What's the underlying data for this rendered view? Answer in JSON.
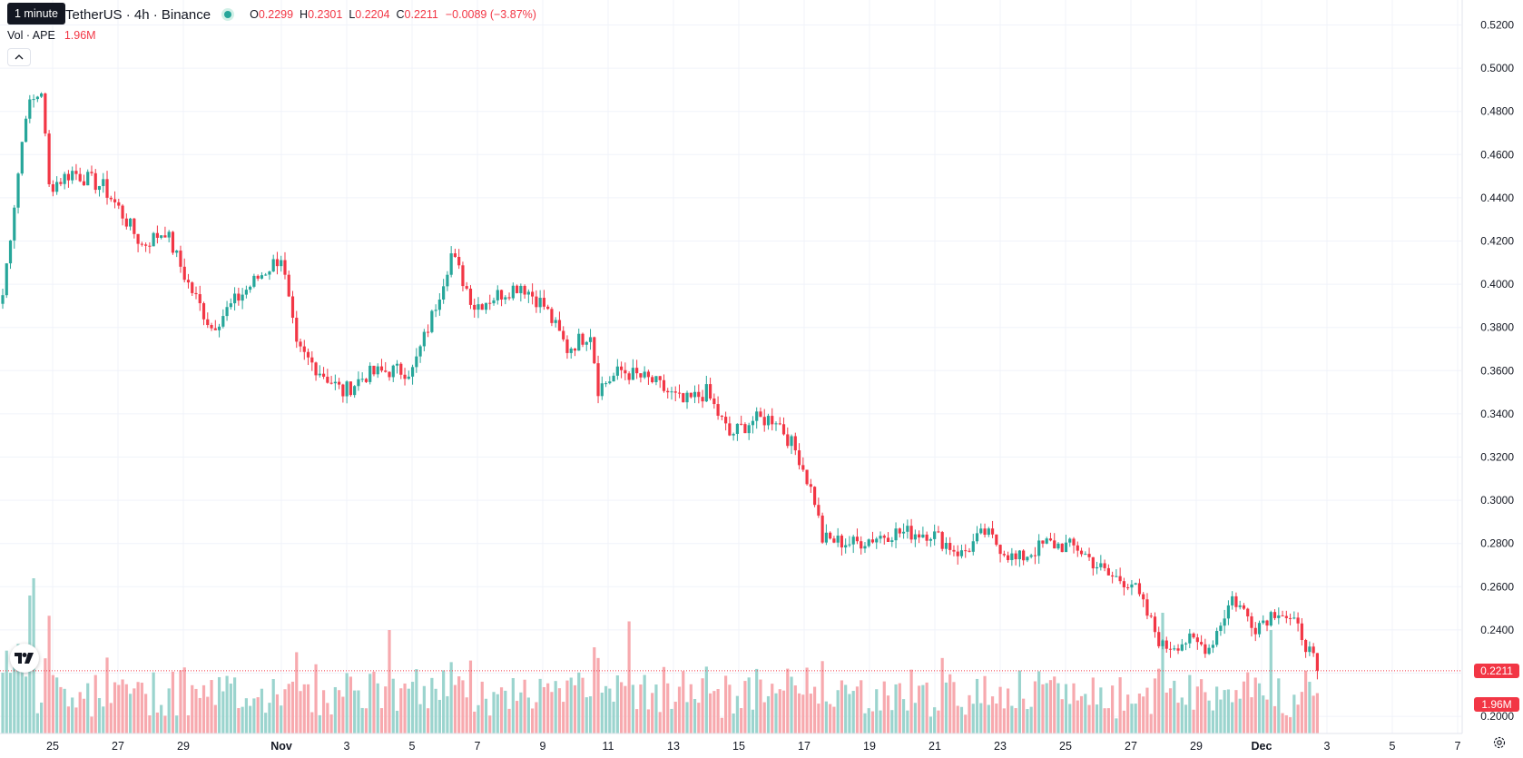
{
  "legend": {
    "symbol": "TetherUS · 4h · Binance",
    "open_label": "O",
    "open": "0.2299",
    "high_label": "H",
    "high": "0.2301",
    "low_label": "L",
    "low": "0.2204",
    "close_label": "C",
    "close": "0.2211",
    "change": "−0.0089 (−3.87%)"
  },
  "tooltip": "1 minute",
  "volume": {
    "label": "Vol · APE",
    "value": "1.96M"
  },
  "price_tag": "0.2211",
  "volume_tag": "1.96M",
  "colors": {
    "up": "#26a69a",
    "down": "#f23645",
    "up_volume": "#9bd4ce",
    "down_volume": "#f7a9ae",
    "grid": "#f0f3fa"
  },
  "icons": {
    "collapse": "chevron-up-icon",
    "logo": "tradingview-logo-icon",
    "settings": "gear-icon"
  },
  "chart_data": {
    "type": "candlestick",
    "timeframe": "4h",
    "x_ticks": [
      "25",
      "27",
      "29",
      "Nov",
      "3",
      "5",
      "7",
      "9",
      "11",
      "13",
      "15",
      "17",
      "19",
      "21",
      "23",
      "25",
      "27",
      "29",
      "Dec",
      "3",
      "5",
      "7"
    ],
    "y_ticks": [
      "0.5200",
      "0.5000",
      "0.4800",
      "0.4600",
      "0.4400",
      "0.4200",
      "0.4000",
      "0.3800",
      "0.3600",
      "0.3400",
      "0.3200",
      "0.3000",
      "0.2800",
      "0.2600",
      "0.2400",
      "0.2200",
      "0.2000"
    ],
    "ylim": [
      0.2,
      0.52
    ],
    "last_price": 0.2211,
    "anchors": [
      {
        "i": 0,
        "c": 0.395
      },
      {
        "i": 6,
        "c": 0.48
      },
      {
        "i": 10,
        "c": 0.49
      },
      {
        "i": 12,
        "c": 0.445
      },
      {
        "i": 18,
        "c": 0.452
      },
      {
        "i": 26,
        "c": 0.445
      },
      {
        "i": 30,
        "c": 0.435
      },
      {
        "i": 36,
        "c": 0.418
      },
      {
        "i": 42,
        "c": 0.425
      },
      {
        "i": 48,
        "c": 0.4
      },
      {
        "i": 54,
        "c": 0.38
      },
      {
        "i": 60,
        "c": 0.392
      },
      {
        "i": 66,
        "c": 0.403
      },
      {
        "i": 72,
        "c": 0.413
      },
      {
        "i": 76,
        "c": 0.37
      },
      {
        "i": 82,
        "c": 0.36
      },
      {
        "i": 88,
        "c": 0.35
      },
      {
        "i": 94,
        "c": 0.358
      },
      {
        "i": 100,
        "c": 0.36
      },
      {
        "i": 106,
        "c": 0.36
      },
      {
        "i": 111,
        "c": 0.385
      },
      {
        "i": 116,
        "c": 0.414
      },
      {
        "i": 122,
        "c": 0.39
      },
      {
        "i": 128,
        "c": 0.395
      },
      {
        "i": 134,
        "c": 0.4
      },
      {
        "i": 140,
        "c": 0.39
      },
      {
        "i": 146,
        "c": 0.37
      },
      {
        "i": 152,
        "c": 0.378
      },
      {
        "i": 154,
        "c": 0.352
      },
      {
        "i": 160,
        "c": 0.36
      },
      {
        "i": 168,
        "c": 0.355
      },
      {
        "i": 176,
        "c": 0.345
      },
      {
        "i": 182,
        "c": 0.35
      },
      {
        "i": 188,
        "c": 0.33
      },
      {
        "i": 194,
        "c": 0.337
      },
      {
        "i": 200,
        "c": 0.338
      },
      {
        "i": 206,
        "c": 0.32
      },
      {
        "i": 210,
        "c": 0.3
      },
      {
        "i": 212,
        "c": 0.282
      },
      {
        "i": 220,
        "c": 0.28
      },
      {
        "i": 230,
        "c": 0.285
      },
      {
        "i": 240,
        "c": 0.285
      },
      {
        "i": 248,
        "c": 0.275
      },
      {
        "i": 254,
        "c": 0.285
      },
      {
        "i": 262,
        "c": 0.272
      },
      {
        "i": 270,
        "c": 0.28
      },
      {
        "i": 278,
        "c": 0.278
      },
      {
        "i": 286,
        "c": 0.265
      },
      {
        "i": 292,
        "c": 0.262
      },
      {
        "i": 300,
        "c": 0.232
      },
      {
        "i": 306,
        "c": 0.235
      },
      {
        "i": 312,
        "c": 0.232
      },
      {
        "i": 318,
        "c": 0.255
      },
      {
        "i": 324,
        "c": 0.242
      },
      {
        "i": 330,
        "c": 0.25
      },
      {
        "i": 336,
        "c": 0.238
      },
      {
        "i": 340,
        "c": 0.2211
      }
    ],
    "volume_spikes": [
      {
        "i": 7,
        "v": 0.8
      },
      {
        "i": 8,
        "v": 0.9
      },
      {
        "i": 100,
        "v": 0.6
      },
      {
        "i": 162,
        "v": 0.65
      },
      {
        "i": 300,
        "v": 0.7
      },
      {
        "i": 328,
        "v": 0.6
      }
    ]
  }
}
